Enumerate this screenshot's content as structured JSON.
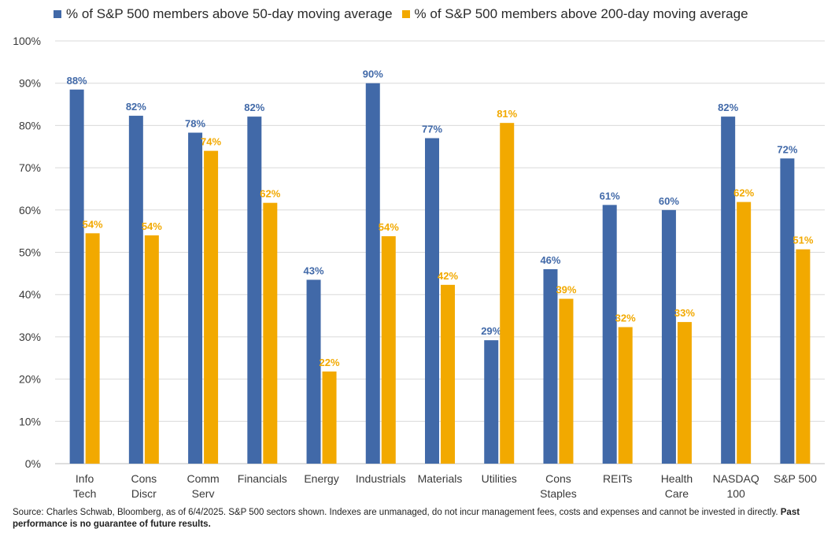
{
  "colors": {
    "series_50": "#4169A8",
    "series_200": "#F2A900",
    "grid": "#D9D9D9",
    "axis_text": "#3a3a3a"
  },
  "legend": {
    "items": [
      "% of S&P 500 members above 50-day moving average",
      "% of S&P 500 members above 200-day moving average"
    ]
  },
  "source": {
    "text": "Source: Charles Schwab, Bloomberg, as of 6/4/2025. S&P 500 sectors shown. Indexes are unmanaged, do not incur management fees, costs and expenses and cannot be invested in directly. ",
    "bold": "Past performance is no guarantee of future results."
  },
  "chart_data": {
    "type": "bar",
    "title": "",
    "xlabel": "",
    "ylabel": "",
    "ylim": [
      0,
      100
    ],
    "yticks": [
      "0%",
      "10%",
      "20%",
      "30%",
      "40%",
      "50%",
      "60%",
      "70%",
      "80%",
      "90%",
      "100%"
    ],
    "grid": true,
    "legend_position": "top",
    "categories": [
      [
        "Info",
        "Tech"
      ],
      [
        "Cons",
        "Discr"
      ],
      [
        "Comm",
        "Serv"
      ],
      [
        "Financials"
      ],
      [
        "Energy"
      ],
      [
        "Industrials"
      ],
      [
        "Materials"
      ],
      [
        "Utilities"
      ],
      [
        "Cons",
        "Staples"
      ],
      [
        "REITs"
      ],
      [
        "Health",
        "Care"
      ],
      [
        "NASDAQ",
        "100"
      ],
      [
        "S&P 500"
      ]
    ],
    "series": [
      {
        "name": "% of S&P 500 members above 50-day moving average",
        "values": [
          88.5,
          82.3,
          78.3,
          82.1,
          43.5,
          90,
          77,
          29.2,
          46,
          61.2,
          60,
          82.1,
          72.2
        ],
        "labels": [
          "88%",
          "82%",
          "78%",
          "82%",
          "43%",
          "90%",
          "77%",
          "29%",
          "46%",
          "61%",
          "60%",
          "82%",
          "72%"
        ]
      },
      {
        "name": "% of S&P 500 members above 200-day moving average",
        "values": [
          54.5,
          54,
          74,
          61.7,
          21.8,
          53.8,
          42.3,
          80.6,
          39,
          32.3,
          33.5,
          61.9,
          50.7
        ],
        "labels": [
          "54%",
          "54%",
          "74%",
          "62%",
          "22%",
          "54%",
          "42%",
          "81%",
          "39%",
          "32%",
          "33%",
          "62%",
          "51%"
        ]
      }
    ]
  }
}
